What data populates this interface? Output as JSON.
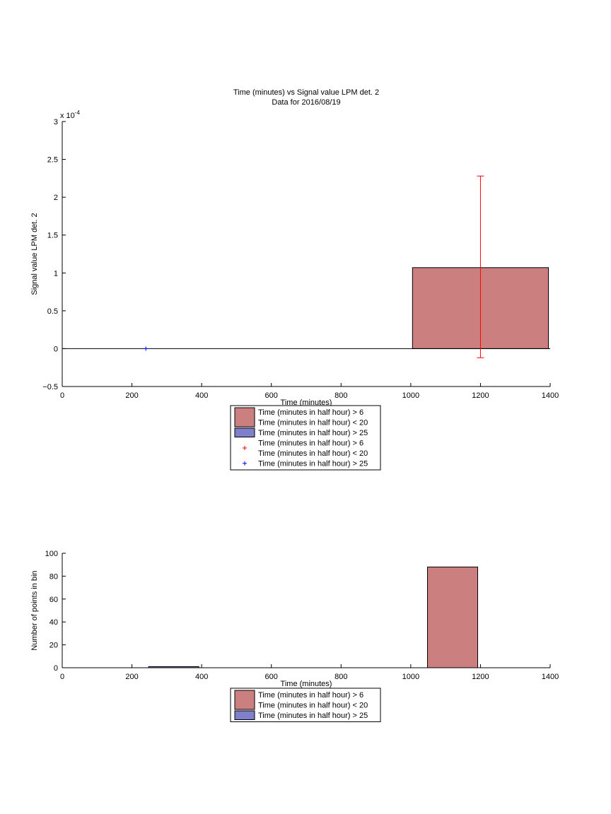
{
  "chart_data": [
    {
      "type": "bar",
      "title": "Time (minutes) vs Signal value LPM det. 2",
      "subtitle": "Data for 2016/08/19",
      "xlabel": "Time (minutes)",
      "ylabel": "Signal value LPM det. 2",
      "y_scale_label": "x 10",
      "y_scale_exponent": "-4",
      "xlim": [
        0,
        1400
      ],
      "ylim": [
        -0.5,
        3
      ],
      "x_ticks": [
        0,
        200,
        400,
        600,
        800,
        1000,
        1200,
        1400
      ],
      "y_ticks": [
        -0.5,
        0,
        0.5,
        1,
        1.5,
        2,
        2.5,
        3
      ],
      "y_tick_labels": [
        "−0.5",
        "0",
        "0.5",
        "1",
        "1.5",
        "2",
        "2.5",
        "3"
      ],
      "bars": [
        {
          "series": "Time (minutes in half hour) > 6 Time (minutes in half hour) < 20",
          "x_start": 1005,
          "x_end": 1395,
          "value": 1.07,
          "color": "#cc7f7f"
        }
      ],
      "errorbars": [
        {
          "series": "Time (minutes in half hour) > 6 Time (minutes in half hour) < 20",
          "x": 1200,
          "y": 1.07,
          "low": -0.12,
          "high": 2.28,
          "color": "#ff0000"
        }
      ],
      "points": [
        {
          "series": "Time (minutes in half hour) > 25",
          "x": 240,
          "y": 0,
          "marker": "+",
          "color": "#0000ff"
        }
      ],
      "legend": {
        "placement": "bottom-center",
        "entries": [
          {
            "kind": "patch",
            "color": "#cc7f7f",
            "lines": [
              "Time (minutes in half hour) > 6",
              "Time (minutes in half hour) < 20"
            ]
          },
          {
            "kind": "patch",
            "color": "#7f7fcc",
            "lines": [
              "Time (minutes in half hour) > 25"
            ]
          },
          {
            "kind": "marker",
            "color": "#ff0000",
            "lines": [
              "Time (minutes in half hour) > 6",
              "Time (minutes in half hour) < 20"
            ]
          },
          {
            "kind": "marker",
            "color": "#0000ff",
            "lines": [
              "Time (minutes in half hour) > 25"
            ]
          }
        ]
      }
    },
    {
      "type": "bar",
      "xlabel": "Time (minutes)",
      "ylabel": "Number of points in bin",
      "xlim": [
        0,
        1400
      ],
      "ylim": [
        0,
        100
      ],
      "x_ticks": [
        0,
        200,
        400,
        600,
        800,
        1000,
        1200,
        1400
      ],
      "y_ticks": [
        0,
        20,
        40,
        60,
        80,
        100
      ],
      "y_tick_labels": [
        "0",
        "20",
        "40",
        "60",
        "80",
        "100"
      ],
      "bars": [
        {
          "series": "Time (minutes in half hour) > 25",
          "x_start": 248,
          "x_end": 392,
          "value": 1,
          "color": "#7f7fcc"
        },
        {
          "series": "Time (minutes in half hour) > 6 Time (minutes in half hour) < 20",
          "x_start": 1048,
          "x_end": 1192,
          "value": 88,
          "color": "#cc7f7f"
        }
      ],
      "errorbars": [],
      "points": [],
      "legend": {
        "placement": "bottom-center",
        "entries": [
          {
            "kind": "patch",
            "color": "#cc7f7f",
            "lines": [
              "Time (minutes in half hour) > 6",
              "Time (minutes in half hour) < 20"
            ]
          },
          {
            "kind": "patch",
            "color": "#7f7fcc",
            "lines": [
              "Time (minutes in half hour) > 25"
            ]
          }
        ]
      }
    }
  ]
}
